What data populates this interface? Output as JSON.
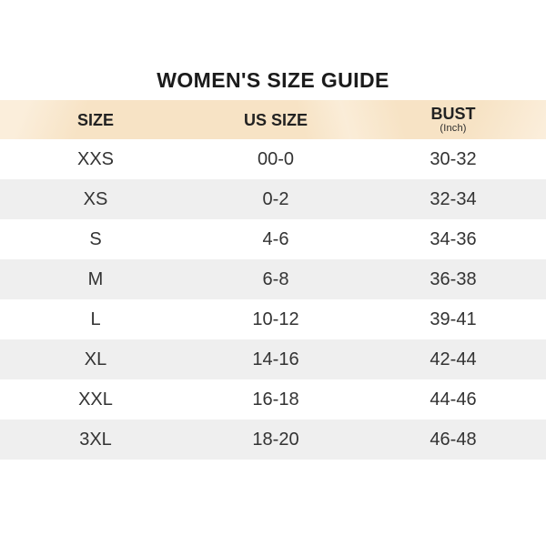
{
  "title": "WOMEN'S SIZE GUIDE",
  "table": {
    "columns": [
      {
        "label": "SIZE",
        "sublabel": ""
      },
      {
        "label": "US SIZE",
        "sublabel": ""
      },
      {
        "label": "BUST",
        "sublabel": "(Inch)"
      }
    ],
    "rows": [
      {
        "size": "XXS",
        "us_size": "00-0",
        "bust_inch": "30-32"
      },
      {
        "size": "XS",
        "us_size": "0-2",
        "bust_inch": "32-34"
      },
      {
        "size": "S",
        "us_size": "4-6",
        "bust_inch": "34-36"
      },
      {
        "size": "M",
        "us_size": "6-8",
        "bust_inch": "36-38"
      },
      {
        "size": "L",
        "us_size": "10-12",
        "bust_inch": "39-41"
      },
      {
        "size": "XL",
        "us_size": "14-16",
        "bust_inch": "42-44"
      },
      {
        "size": "XXL",
        "us_size": "16-18",
        "bust_inch": "44-46"
      },
      {
        "size": "3XL",
        "us_size": "18-20",
        "bust_inch": "46-48"
      }
    ]
  },
  "colors": {
    "header_background": "#f7e3c5",
    "header_background_light": "#fbeedb",
    "alt_row_background": "#efefef",
    "title_text": "#1b1b1b",
    "cell_text": "#333333"
  }
}
